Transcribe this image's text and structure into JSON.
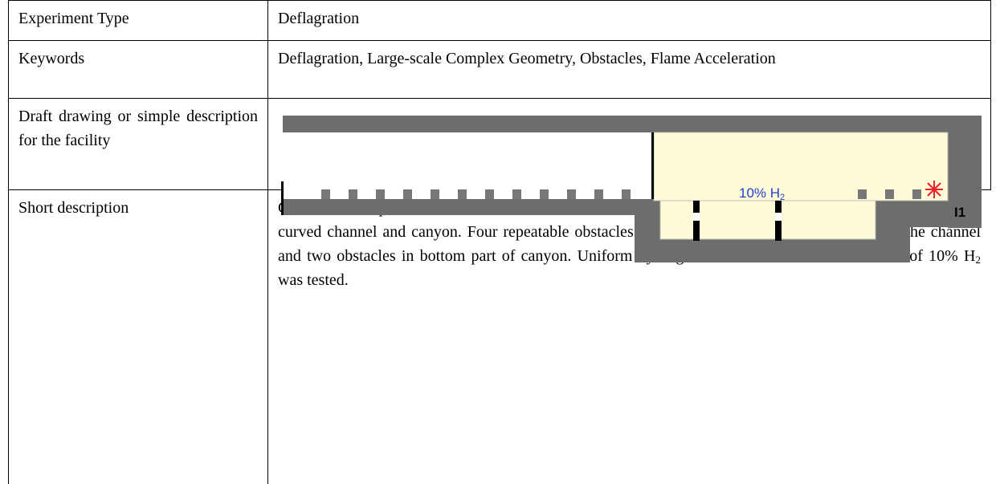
{
  "table": {
    "rows": [
      {
        "label": "Experiment Type",
        "value": "Deflagration"
      },
      {
        "label": "Keywords",
        "value": "Deflagration, Large-scale Complex Geometry, Obstacles, Flame Acceleration"
      },
      {
        "label": "Draft drawing or simple description for the facility",
        "drawing": {
          "mixture": "10% H",
          "mixture_subscript": "2",
          "sensor": "I1"
        }
      },
      {
        "label": "Short description",
        "value": "Combustion experiments have been carried out in large scale multi-compartment geometry consisted of curved channel and canyon. Four repeatable obstacles with blockage ratio BR=0.3 installed in the channel and two obstacles in bottom part of canyon. Uniform hydrogen/air mixture with concentration of 10% H",
        "value_subscript": "2",
        "value_end": " was tested."
      }
    ]
  }
}
